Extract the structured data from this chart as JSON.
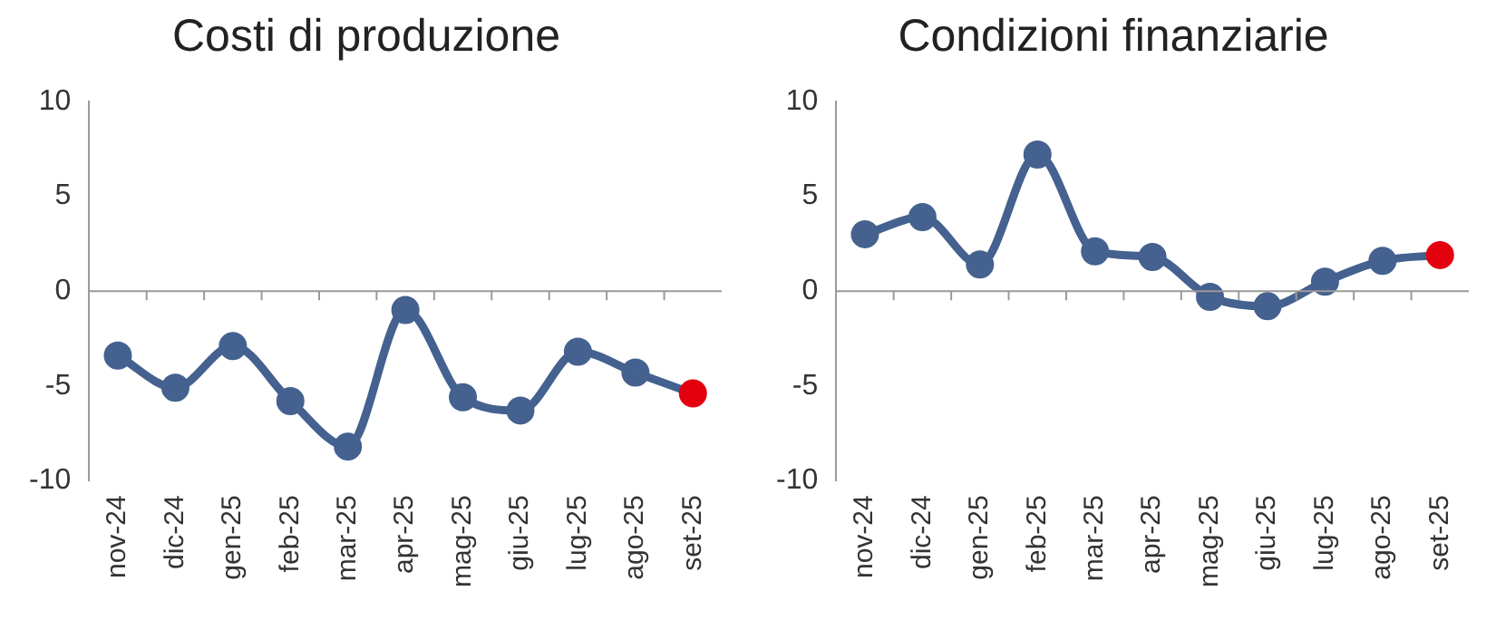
{
  "chart_data": [
    {
      "type": "line",
      "title": "Costi di produzione",
      "categories": [
        "nov-24",
        "dic-24",
        "gen-25",
        "feb-25",
        "mar-25",
        "apr-25",
        "mag-25",
        "giu-25",
        "lug-25",
        "ago-25",
        "set-25"
      ],
      "series": [
        {
          "color": "#44618f",
          "colors": [
            "#44618f",
            "#44618f",
            "#44618f",
            "#44618f",
            "#44618f",
            "#44618f",
            "#44618f",
            "#44618f",
            "#44618f",
            "#44618f",
            "#e3000f"
          ],
          "values": [
            -3.4,
            -5.1,
            -2.9,
            -5.8,
            -8.2,
            -1.0,
            -5.6,
            -6.3,
            -3.2,
            -4.3,
            -5.4
          ]
        }
      ],
      "ylim": [
        -10,
        10
      ],
      "yticks": [
        -10,
        -5,
        0,
        5,
        10
      ],
      "ref_lines": [
        {
          "axis": "y",
          "value": 0,
          "color": "#9a9a9a"
        }
      ],
      "grid": false,
      "legend": false,
      "marker": "circle",
      "line_style": "solid"
    },
    {
      "type": "line",
      "title": "Condizioni finanziarie",
      "categories": [
        "nov-24",
        "dic-24",
        "gen-25",
        "feb-25",
        "mar-25",
        "apr-25",
        "mag-25",
        "giu-25",
        "lug-25",
        "ago-25",
        "set-25"
      ],
      "series": [
        {
          "color": "#44618f",
          "colors": [
            "#44618f",
            "#44618f",
            "#44618f",
            "#44618f",
            "#44618f",
            "#44618f",
            "#44618f",
            "#44618f",
            "#44618f",
            "#44618f",
            "#e3000f"
          ],
          "values": [
            3.0,
            3.9,
            1.4,
            7.2,
            2.1,
            1.8,
            -0.3,
            -0.8,
            0.5,
            1.6,
            1.9
          ]
        }
      ],
      "ylim": [
        -10,
        10
      ],
      "yticks": [
        -10,
        -5,
        0,
        5,
        10
      ],
      "ref_lines": [
        {
          "axis": "y",
          "value": 0,
          "color": "#9a9a9a"
        }
      ],
      "grid": false,
      "legend": false,
      "marker": "circle",
      "line_style": "solid"
    }
  ]
}
